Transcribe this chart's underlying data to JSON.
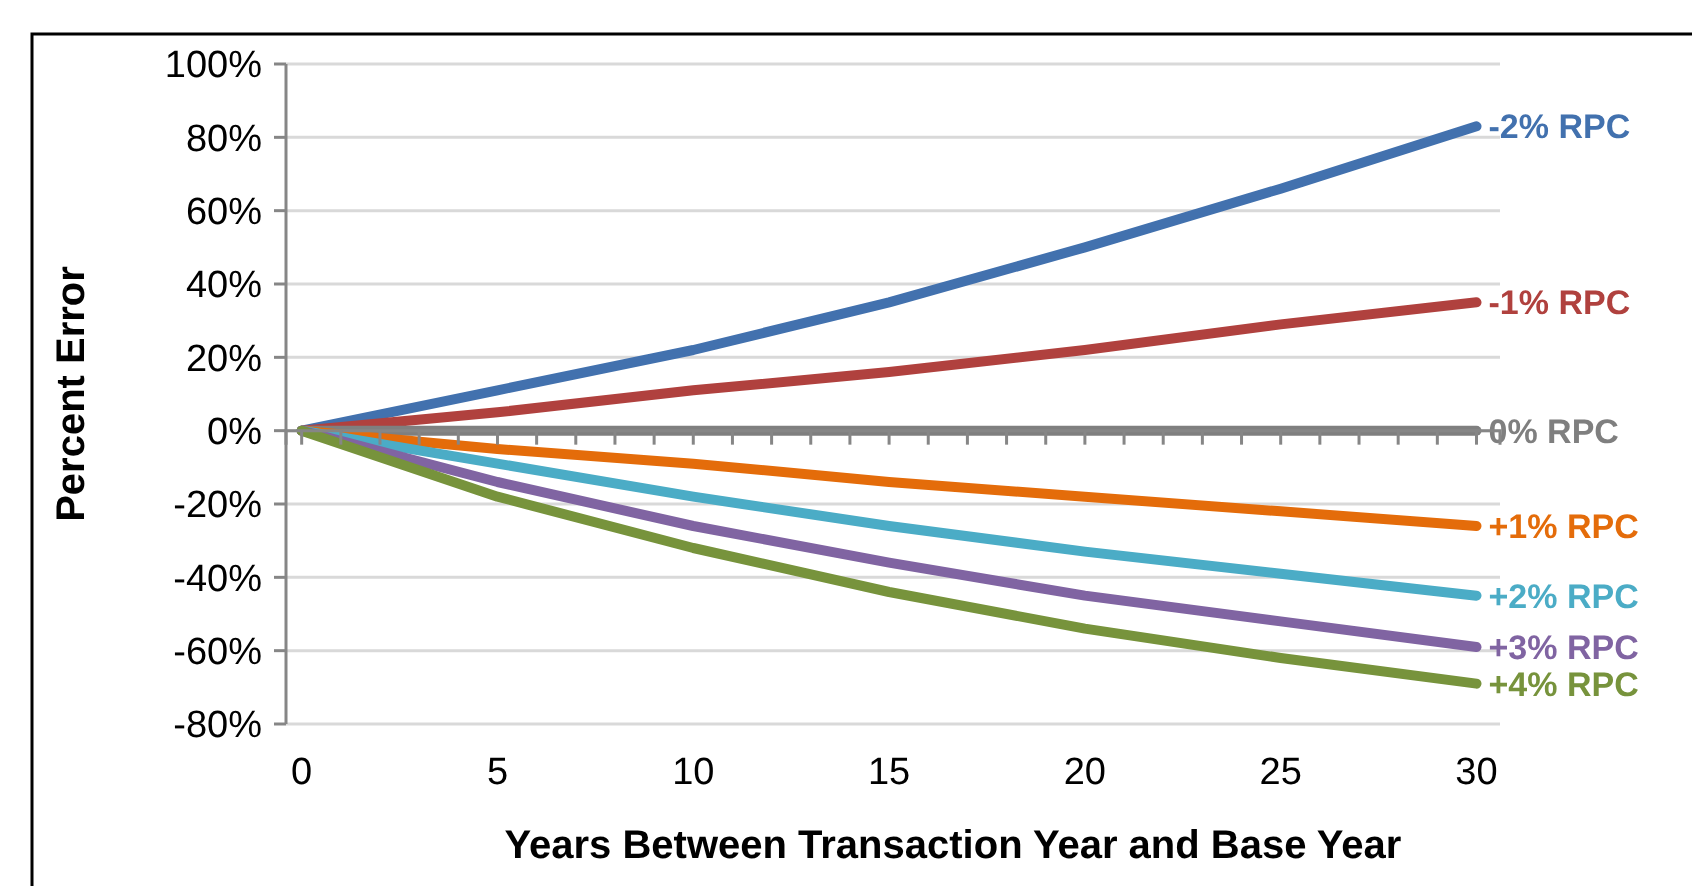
{
  "chart_data": {
    "type": "line",
    "xlabel": "Years Between Transaction Year and Base Year",
    "ylabel": "Percent Error",
    "x": [
      0,
      5,
      10,
      15,
      20,
      25,
      30
    ],
    "xlim": [
      -0.4,
      30.6
    ],
    "xticks": [
      0,
      {
        "value": 1,
        "label": null
      },
      {
        "value": 2,
        "label": null
      },
      {
        "value": 3,
        "label": null
      },
      {
        "value": 4,
        "label": null
      },
      5,
      {
        "value": 6,
        "label": null
      },
      {
        "value": 7,
        "label": null
      },
      {
        "value": 8,
        "label": null
      },
      {
        "value": 9,
        "label": null
      },
      10,
      {
        "value": 11,
        "label": null
      },
      {
        "value": 12,
        "label": null
      },
      {
        "value": 13,
        "label": null
      },
      {
        "value": 14,
        "label": null
      },
      15,
      {
        "value": 16,
        "label": null
      },
      {
        "value": 17,
        "label": null
      },
      {
        "value": 18,
        "label": null
      },
      {
        "value": 19,
        "label": null
      },
      20,
      {
        "value": 21,
        "label": null
      },
      {
        "value": 22,
        "label": null
      },
      {
        "value": 23,
        "label": null
      },
      {
        "value": 24,
        "label": null
      },
      25,
      {
        "value": 26,
        "label": null
      },
      {
        "value": 27,
        "label": null
      },
      {
        "value": 28,
        "label": null
      },
      {
        "value": 29,
        "label": null
      },
      30
    ],
    "ylim": [
      -80,
      100
    ],
    "yticks": [
      {
        "value": -80,
        "label": "-80%"
      },
      {
        "value": -60,
        "label": "-60%"
      },
      {
        "value": -40,
        "label": "-40%"
      },
      {
        "value": -20,
        "label": "-20%"
      },
      {
        "value": 0,
        "label": "0%"
      },
      {
        "value": 20,
        "label": "20%"
      },
      {
        "value": 40,
        "label": "40%"
      },
      {
        "value": 60,
        "label": "60%"
      },
      {
        "value": 80,
        "label": "80%"
      },
      {
        "value": 100,
        "label": "100%"
      }
    ],
    "grid": "y",
    "legend": "right",
    "marker": "none",
    "line_style": "solid",
    "series": [
      {
        "name": "-2% RPC",
        "color": "#4271ae",
        "values": [
          0,
          11,
          22,
          35,
          50,
          66,
          83
        ]
      },
      {
        "name": "-1% RPC",
        "color": "#b0413e",
        "values": [
          0,
          5,
          11,
          16,
          22,
          29,
          35
        ]
      },
      {
        "name": "0% RPC",
        "color": "#7f7f7f",
        "values": [
          0,
          0,
          0,
          0,
          0,
          0,
          0
        ]
      },
      {
        "name": "+1% RPC",
        "color": "#e46c0a",
        "values": [
          0,
          -5,
          -9,
          -14,
          -18,
          -22,
          -26
        ]
      },
      {
        "name": "+2% RPC",
        "color": "#4bacc6",
        "values": [
          0,
          -9,
          -18,
          -26,
          -33,
          -39,
          -45
        ]
      },
      {
        "name": "+3% RPC",
        "color": "#8064a2",
        "values": [
          0,
          -14,
          -26,
          -36,
          -45,
          -52,
          -59
        ]
      },
      {
        "name": "+4% RPC",
        "color": "#77933c",
        "values": [
          0,
          -18,
          -32,
          -44,
          -54,
          -62,
          -69
        ]
      }
    ]
  }
}
